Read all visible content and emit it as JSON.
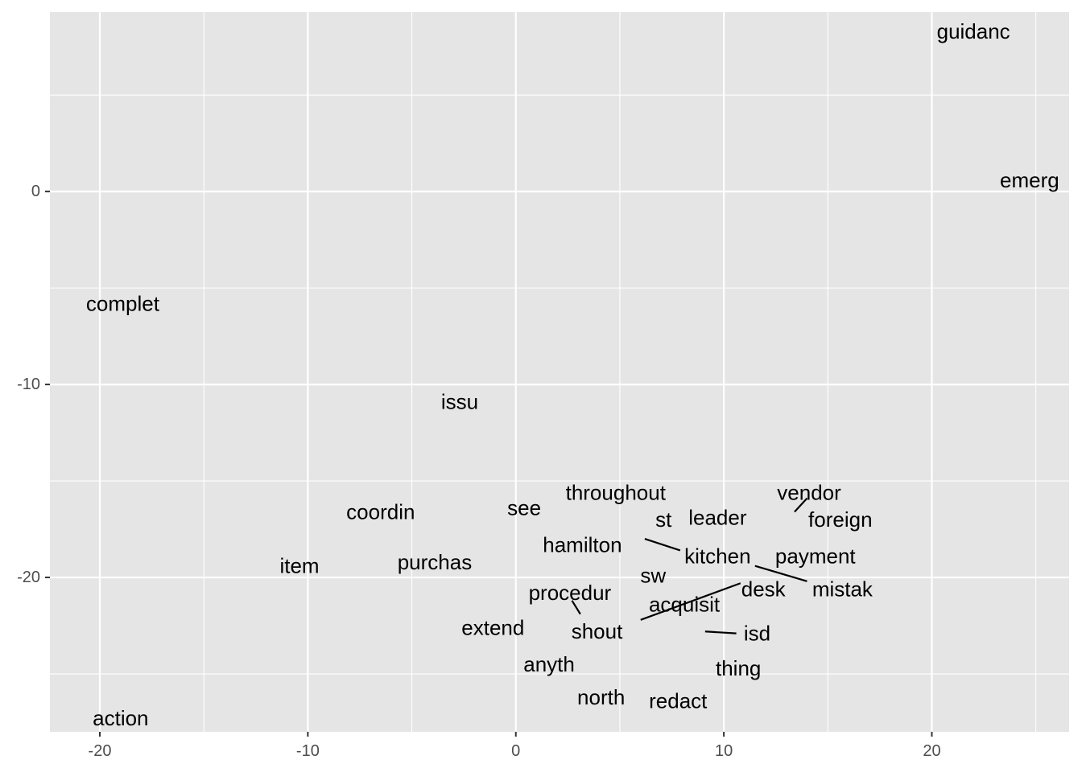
{
  "chart_data": {
    "type": "scatter",
    "title": "",
    "xlabel": "",
    "ylabel": "",
    "xlim": [
      -22.4,
      26.6
    ],
    "ylim": [
      -28.0,
      9.3
    ],
    "x_ticks": [
      -20,
      -10,
      0,
      10,
      20
    ],
    "y_ticks": [
      -20,
      -10,
      0
    ],
    "x_tick_labels": [
      "-20",
      "-10",
      "0",
      "10",
      "20"
    ],
    "y_tick_labels": [
      "-20",
      "-10",
      "0"
    ],
    "grid": true,
    "legend": "none",
    "points": [
      {
        "label": "guidanc",
        "x": 22.0,
        "y": 8.3
      },
      {
        "label": "emerg",
        "x": 24.7,
        "y": 0.6
      },
      {
        "label": "complet",
        "x": -18.9,
        "y": -5.8
      },
      {
        "label": "issu",
        "x": -2.7,
        "y": -10.9
      },
      {
        "label": "throughout",
        "x": 4.8,
        "y": -15.6
      },
      {
        "label": "vendor",
        "x": 14.1,
        "y": -15.6
      },
      {
        "label": "coordin",
        "x": -6.5,
        "y": -16.6
      },
      {
        "label": "see",
        "x": 0.4,
        "y": -16.4
      },
      {
        "label": "st",
        "x": 7.1,
        "y": -17.0
      },
      {
        "label": "leader",
        "x": 9.7,
        "y": -16.9
      },
      {
        "label": "foreign",
        "x": 15.6,
        "y": -17.0
      },
      {
        "label": "hamilton",
        "x": 3.2,
        "y": -18.3
      },
      {
        "label": "kitchen",
        "x": 9.7,
        "y": -18.9
      },
      {
        "label": "payment",
        "x": 14.4,
        "y": -18.9
      },
      {
        "label": "item",
        "x": -10.4,
        "y": -19.4
      },
      {
        "label": "purchas",
        "x": -3.9,
        "y": -19.2
      },
      {
        "label": "sw",
        "x": 6.6,
        "y": -19.9
      },
      {
        "label": "desk",
        "x": 11.9,
        "y": -20.6
      },
      {
        "label": "mistak",
        "x": 15.7,
        "y": -20.6
      },
      {
        "label": "procedur",
        "x": 2.6,
        "y": -20.8
      },
      {
        "label": "acquisit",
        "x": 8.1,
        "y": -21.4
      },
      {
        "label": "extend",
        "x": -1.1,
        "y": -22.6
      },
      {
        "label": "shout",
        "x": 3.9,
        "y": -22.8
      },
      {
        "label": "isd",
        "x": 11.6,
        "y": -22.9
      },
      {
        "label": "anyth",
        "x": 1.6,
        "y": -24.5
      },
      {
        "label": "thing",
        "x": 10.7,
        "y": -24.7
      },
      {
        "label": "north",
        "x": 4.1,
        "y": -26.2
      },
      {
        "label": "redact",
        "x": 7.8,
        "y": -26.4
      },
      {
        "label": "action",
        "x": -19.0,
        "y": -27.3
      }
    ],
    "connectors": [
      {
        "label": "vendor",
        "from": [
          14.0,
          -15.9
        ],
        "to": [
          13.4,
          -16.6
        ]
      },
      {
        "label": "hamilton",
        "from": [
          6.2,
          -18.0
        ],
        "to": [
          7.9,
          -18.6
        ]
      },
      {
        "label": "mistak",
        "from": [
          11.5,
          -19.4
        ],
        "to": [
          14.0,
          -20.2
        ]
      },
      {
        "label": "shout",
        "from": [
          10.8,
          -20.3
        ],
        "to": [
          6.0,
          -22.2
        ]
      },
      {
        "label": "procedur",
        "from": [
          2.7,
          -21.2
        ],
        "to": [
          3.1,
          -21.9
        ]
      },
      {
        "label": "isd",
        "from": [
          9.1,
          -22.8
        ],
        "to": [
          10.6,
          -22.9
        ]
      }
    ]
  }
}
